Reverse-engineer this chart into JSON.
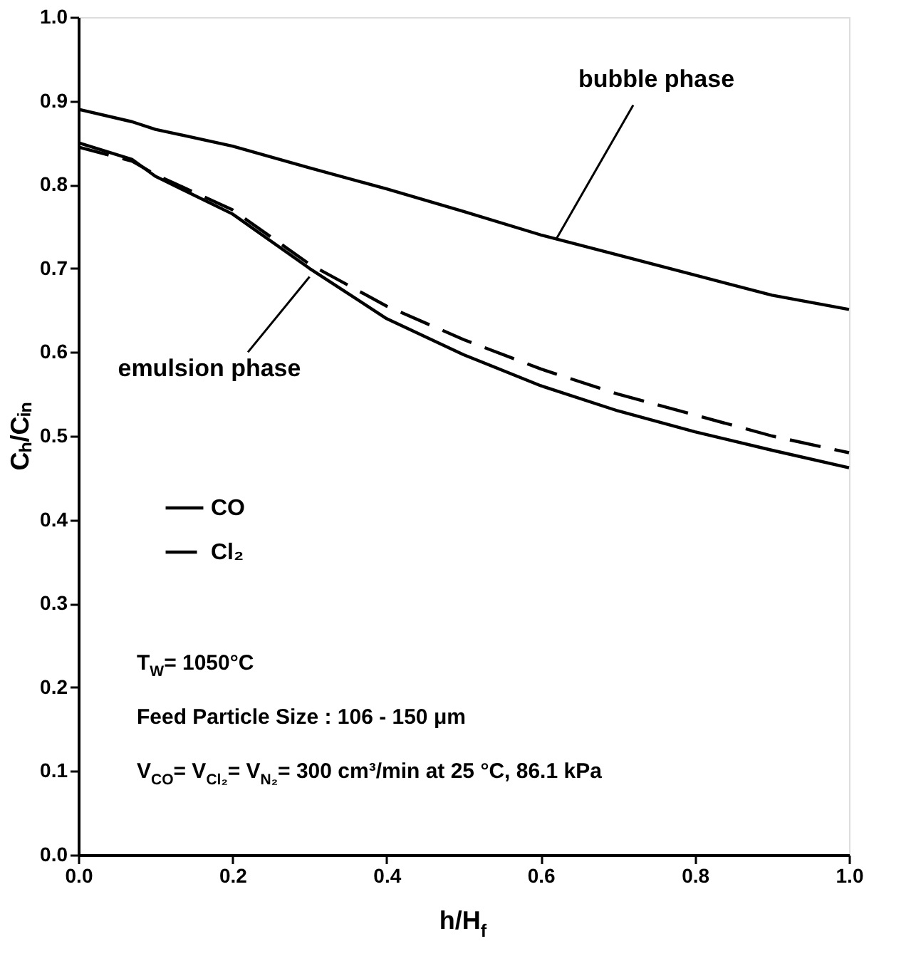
{
  "chart_data": {
    "type": "line",
    "xlabel": "h/H$_{f}$",
    "ylabel": "Cₕ/Cᵢₙ",
    "x": [
      0,
      0.07,
      0.1,
      0.2,
      0.3,
      0.4,
      0.5,
      0.6,
      0.7,
      0.8,
      0.9,
      1.0
    ],
    "series": [
      {
        "color": "#000000",
        "line_style": "solid",
        "values": [
          0.89,
          0.875,
          0.866,
          0.846,
          0.82,
          0.795,
          0.768,
          0.74,
          0.716,
          0.692,
          0.668,
          0.651
        ]
      },
      {
        "name": "CO",
        "color": "#000000",
        "line_style": "solid",
        "values": [
          0.85,
          0.83,
          0.81,
          0.765,
          0.7,
          0.64,
          0.597,
          0.56,
          0.53,
          0.505,
          0.483,
          0.462
        ]
      },
      {
        "name": "Cl₂",
        "color": "#000000",
        "line_style": "dashed",
        "values": [
          0.845,
          0.828,
          0.812,
          0.77,
          0.705,
          0.655,
          0.615,
          0.58,
          0.55,
          0.525,
          0.5,
          0.48
        ]
      }
    ],
    "xlim": [
      0,
      1
    ],
    "ylim": [
      0,
      1
    ],
    "xticks": [
      {
        "value": 0,
        "label": "0.0"
      },
      0.2,
      0.4,
      0.6,
      0.8,
      {
        "value": 1,
        "label": "1.0"
      }
    ],
    "yticks": [
      {
        "value": 0,
        "label": "0.0"
      },
      0.1,
      0.2,
      0.3,
      0.4,
      0.5,
      0.6,
      0.7,
      0.8,
      0.9,
      {
        "value": 1,
        "label": "1.0"
      }
    ],
    "legend": "left",
    "grid": false,
    "marker": "none",
    "annotations": [
      {
        "text": "bubble phase",
        "x": 0.62,
        "y": 0.735
      },
      {
        "text": "emulsion phase",
        "x": 0.3,
        "y": 0.69
      },
      "T$_{W}$= 1050°C",
      "Feed Particle Size : 106 - 150 μm",
      "V$_{CO}$= V$_{Cl₂}$= V$_{N₂}$= 300 cm³/min at 25 °C, 86.1 kPa"
    ]
  }
}
